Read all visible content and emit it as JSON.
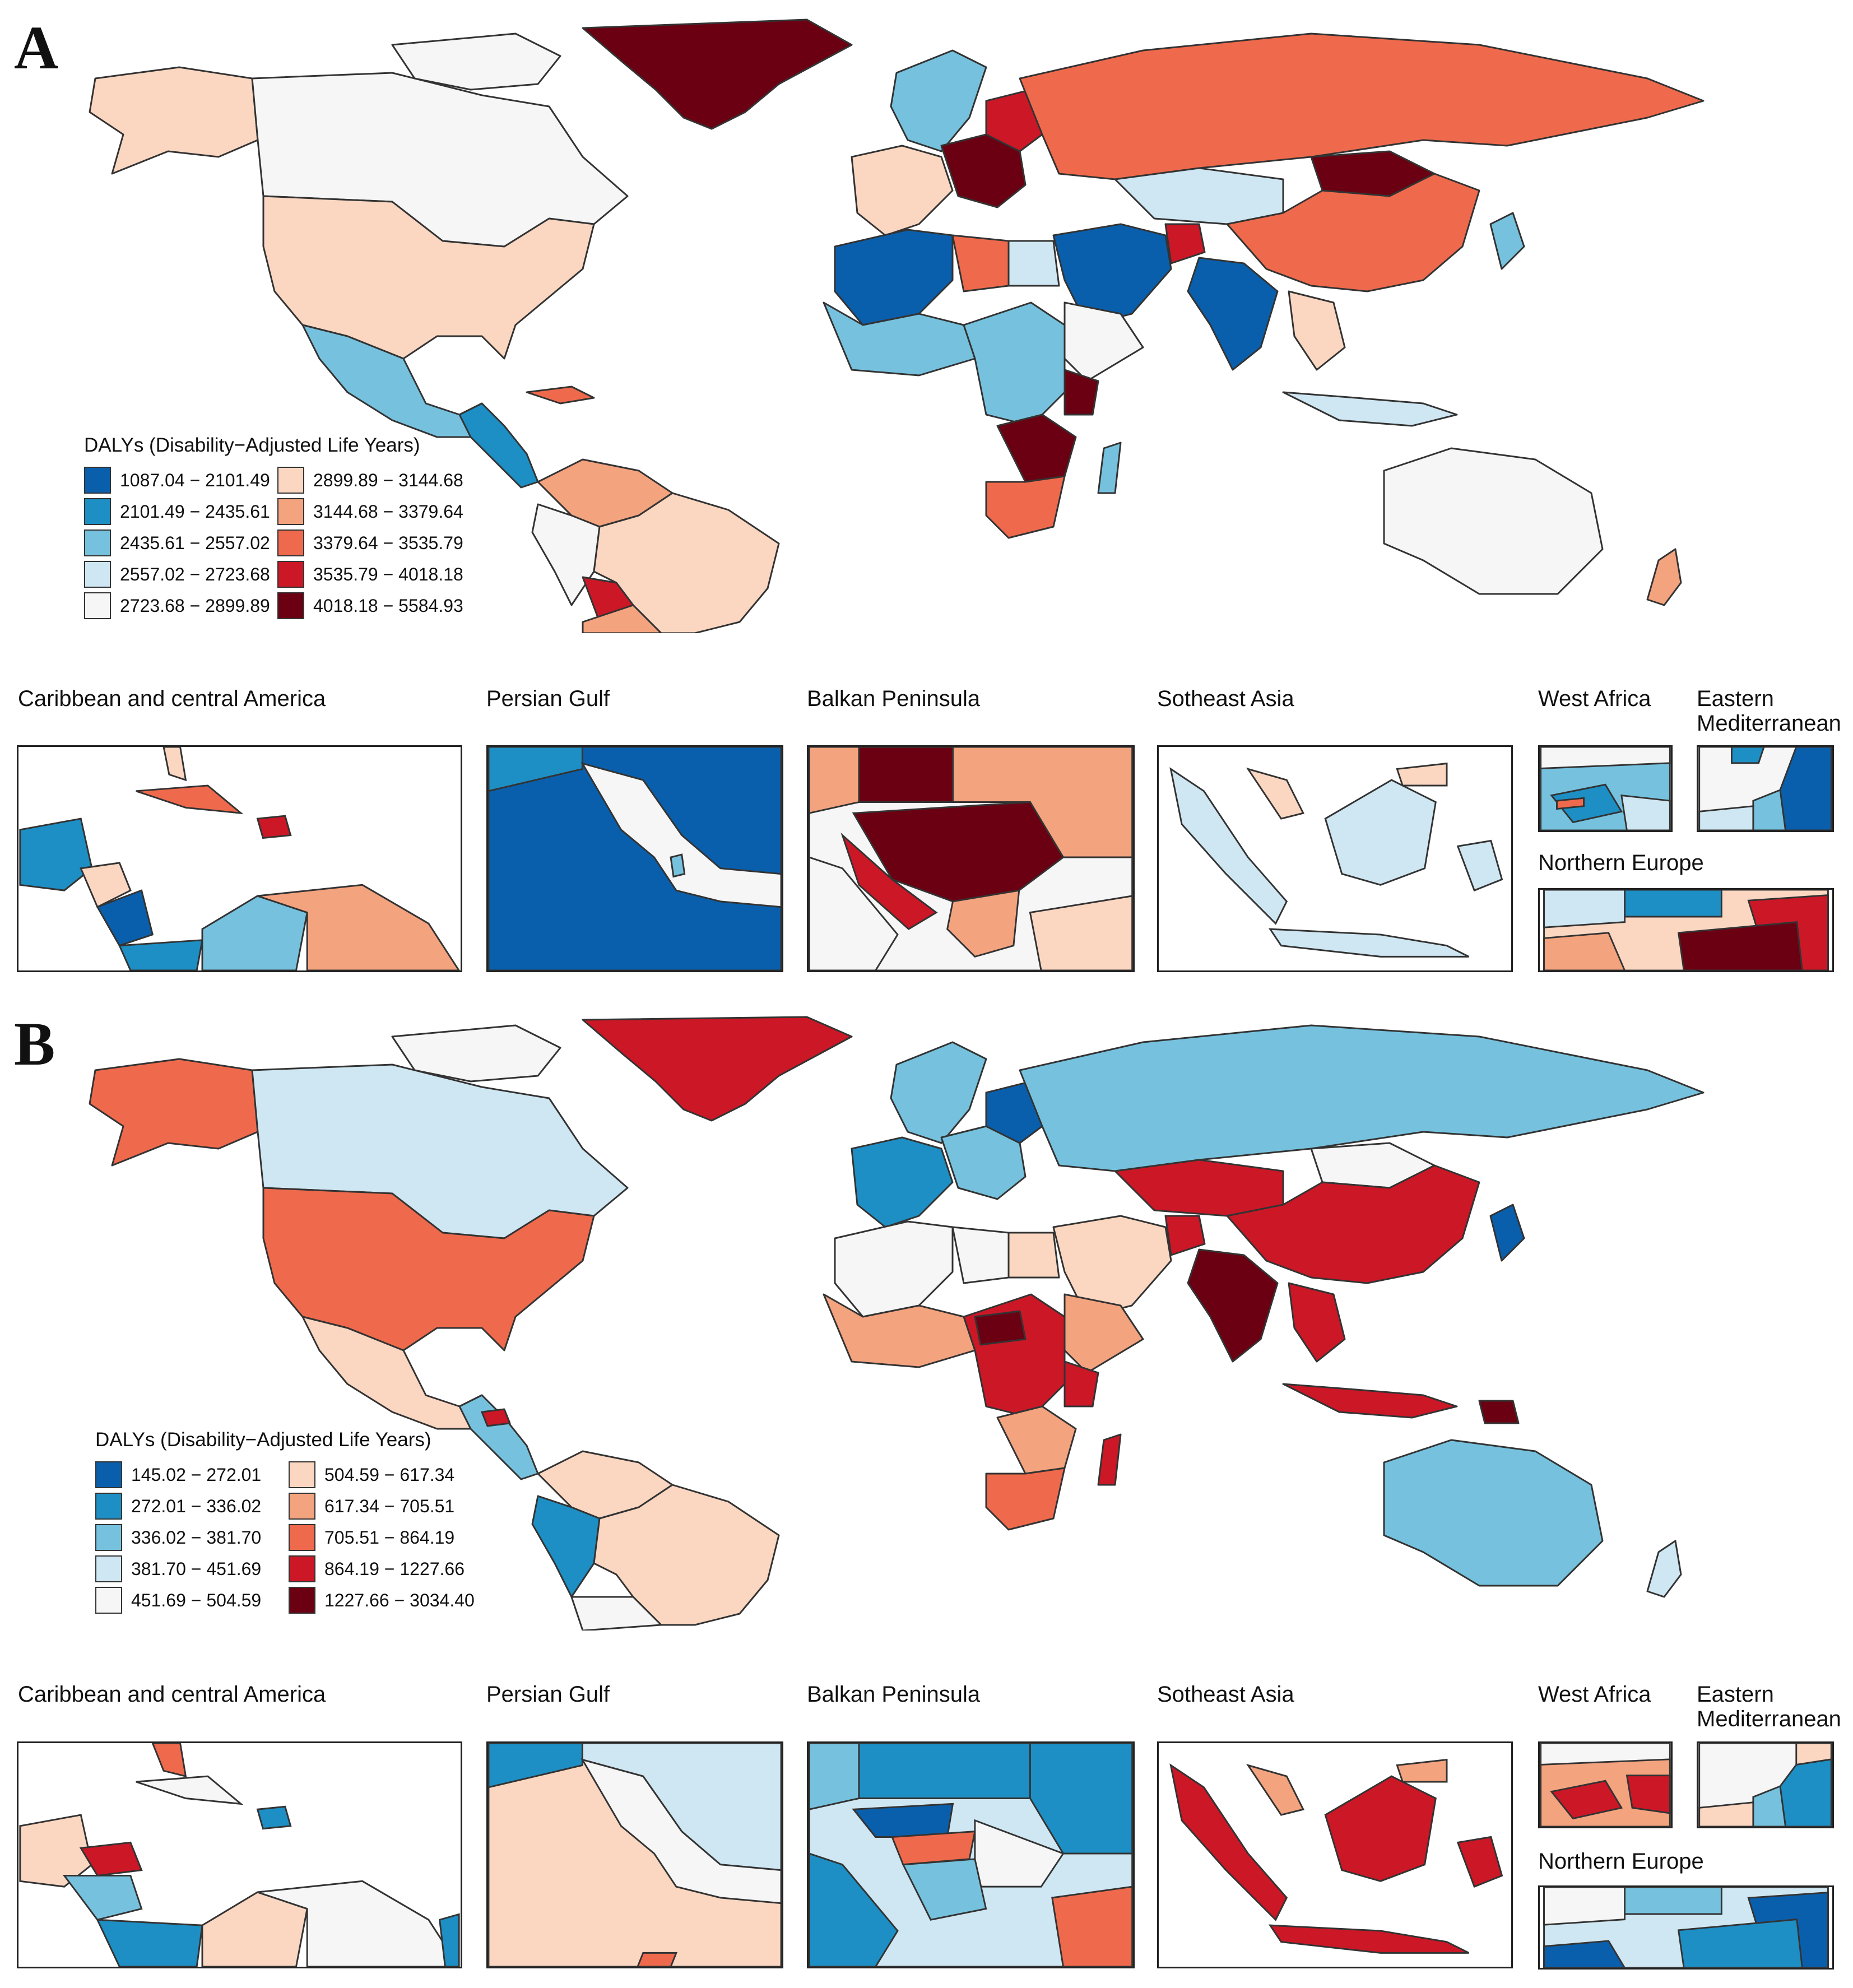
{
  "colors": {
    "c1": "#0a5fac",
    "c2": "#1d8fc4",
    "c3": "#76c2de",
    "c4": "#cfe7f2",
    "c5": "#f6f6f6",
    "c6": "#fbd7c2",
    "c7": "#f4a37f",
    "c8": "#ef6a4c",
    "c9": "#cc1726",
    "c10": "#6a0012"
  },
  "panels": [
    {
      "letter": "A",
      "legend": {
        "title": "DALYs (Disability−Adjusted Life Years)",
        "bins": [
          {
            "label": "1087.04 − 2101.49",
            "color": "#0a5fac"
          },
          {
            "label": "2899.89 − 3144.68",
            "color": "#fbd7c2"
          },
          {
            "label": "2101.49 − 2435.61",
            "color": "#1d8fc4"
          },
          {
            "label": "3144.68 − 3379.64",
            "color": "#f4a37f"
          },
          {
            "label": "2435.61 − 2557.02",
            "color": "#76c2de"
          },
          {
            "label": "3379.64 − 3535.79",
            "color": "#ef6a4c"
          },
          {
            "label": "2557.02 − 2723.68",
            "color": "#cfe7f2"
          },
          {
            "label": "3535.79 − 4018.18",
            "color": "#cc1726"
          },
          {
            "label": "2723.68 − 2899.89",
            "color": "#f6f6f6"
          },
          {
            "label": "4018.18 − 5584.93",
            "color": "#6a0012"
          }
        ]
      },
      "insets": {
        "caribbean": "Caribbean and central America",
        "persian": "Persian Gulf",
        "balkan": "Balkan Peninsula",
        "seasia": "Sotheast Asia",
        "westafrica": "West Africa",
        "eastmed": "Eastern Mediterranean",
        "northeurope": "Northern Europe"
      }
    },
    {
      "letter": "B",
      "legend": {
        "title": "DALYs (Disability−Adjusted Life Years)",
        "bins": [
          {
            "label": "145.02 − 272.01",
            "color": "#0a5fac"
          },
          {
            "label": "504.59 − 617.34",
            "color": "#fbd7c2"
          },
          {
            "label": "272.01 − 336.02",
            "color": "#1d8fc4"
          },
          {
            "label": "617.34 − 705.51",
            "color": "#f4a37f"
          },
          {
            "label": "336.02 − 381.70",
            "color": "#76c2de"
          },
          {
            "label": "705.51 − 864.19",
            "color": "#ef6a4c"
          },
          {
            "label": "381.70 − 451.69",
            "color": "#cfe7f2"
          },
          {
            "label": "864.19 − 1227.66",
            "color": "#cc1726"
          },
          {
            "label": "451.69 − 504.59",
            "color": "#f6f6f6"
          },
          {
            "label": "1227.66 − 3034.40",
            "color": "#6a0012"
          }
        ]
      },
      "insets": {
        "caribbean": "Caribbean and central America",
        "persian": "Persian Gulf",
        "balkan": "Balkan Peninsula",
        "seasia": "Sotheast Asia",
        "westafrica": "West Africa",
        "eastmed": "Eastern Mediterranean",
        "northeurope": "Northern Europe"
      }
    }
  ]
}
